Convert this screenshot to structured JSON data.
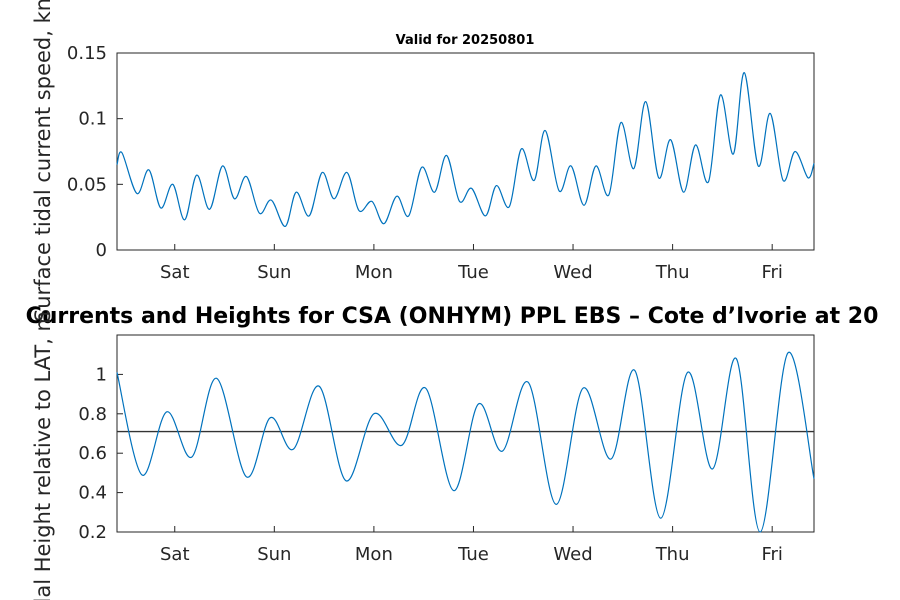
{
  "chart_data": [
    {
      "type": "line",
      "title": "Valid for 20250801",
      "ylabel": "Surface tidal current speed, kn",
      "ylim": [
        0,
        0.15
      ],
      "yticks": [
        0,
        0.05,
        0.1,
        0.15
      ],
      "ytick_labels": [
        "0",
        "0.05",
        "0.1",
        "0.15"
      ],
      "xlim": [
        0,
        7
      ],
      "xticks": [
        0.58,
        1.58,
        2.58,
        3.58,
        4.58,
        5.58,
        6.58
      ],
      "xtick_labels": [
        "Sat",
        "Sun",
        "Mon",
        "Tue",
        "Wed",
        "Thu",
        "Fri"
      ],
      "color": "#0072BD",
      "x": [
        0,
        0.05,
        0.2,
        0.32,
        0.44,
        0.56,
        0.68,
        0.8,
        0.93,
        1.06,
        1.18,
        1.3,
        1.43,
        1.55,
        1.69,
        1.8,
        1.93,
        2.06,
        2.18,
        2.31,
        2.43,
        2.56,
        2.68,
        2.81,
        2.93,
        3.06,
        3.19,
        3.31,
        3.44,
        3.56,
        3.7,
        3.81,
        3.94,
        4.06,
        4.19,
        4.3,
        4.44,
        4.56,
        4.69,
        4.81,
        4.94,
        5.06,
        5.19,
        5.31,
        5.44,
        5.56,
        5.69,
        5.81,
        5.94,
        6.06,
        6.19,
        6.3,
        6.44,
        6.56,
        6.69,
        6.81,
        6.94,
        7.0
      ],
      "y": [
        0.065,
        0.074,
        0.043,
        0.061,
        0.032,
        0.05,
        0.023,
        0.057,
        0.031,
        0.064,
        0.039,
        0.056,
        0.028,
        0.038,
        0.018,
        0.044,
        0.026,
        0.059,
        0.039,
        0.059,
        0.03,
        0.037,
        0.02,
        0.041,
        0.026,
        0.063,
        0.044,
        0.072,
        0.037,
        0.047,
        0.026,
        0.049,
        0.033,
        0.077,
        0.053,
        0.091,
        0.045,
        0.064,
        0.034,
        0.064,
        0.042,
        0.097,
        0.062,
        0.113,
        0.055,
        0.084,
        0.044,
        0.08,
        0.052,
        0.118,
        0.073,
        0.135,
        0.064,
        0.104,
        0.053,
        0.075,
        0.055,
        0.066
      ]
    },
    {
      "type": "line",
      "title": "Currents and Heights for CSA (ONHYM) PPL EBS  – Cote d’Ivorie at 20",
      "ylabel": "Tidal Height relative to LAT, m",
      "ylim": [
        0.2,
        1.2
      ],
      "yticks": [
        0.2,
        0.4,
        0.6,
        0.8,
        1.0
      ],
      "ytick_labels": [
        "0.2",
        "0.4",
        "0.6",
        "0.8",
        "1"
      ],
      "xlim": [
        0,
        7
      ],
      "xticks": [
        0.58,
        1.58,
        2.58,
        3.58,
        4.58,
        5.58,
        6.58
      ],
      "xtick_labels": [
        "Sat",
        "Sun",
        "Mon",
        "Tue",
        "Wed",
        "Thu",
        "Fri"
      ],
      "color": "#0072BD",
      "reference_line": 0.71,
      "reference_color": "#333333",
      "x": [
        0,
        0.25,
        0.5,
        0.75,
        1.0,
        1.3,
        1.54,
        1.77,
        2.03,
        2.3,
        2.58,
        2.86,
        3.1,
        3.38,
        3.63,
        3.87,
        4.13,
        4.41,
        4.68,
        4.96,
        5.2,
        5.46,
        5.73,
        5.98,
        6.22,
        6.46,
        6.74,
        7.0
      ],
      "y": [
        1.01,
        0.49,
        0.81,
        0.58,
        0.98,
        0.48,
        0.78,
        0.62,
        0.94,
        0.46,
        0.8,
        0.64,
        0.93,
        0.41,
        0.85,
        0.61,
        0.96,
        0.34,
        0.93,
        0.57,
        1.02,
        0.27,
        1.01,
        0.52,
        1.08,
        0.2,
        1.11,
        0.47
      ]
    }
  ]
}
